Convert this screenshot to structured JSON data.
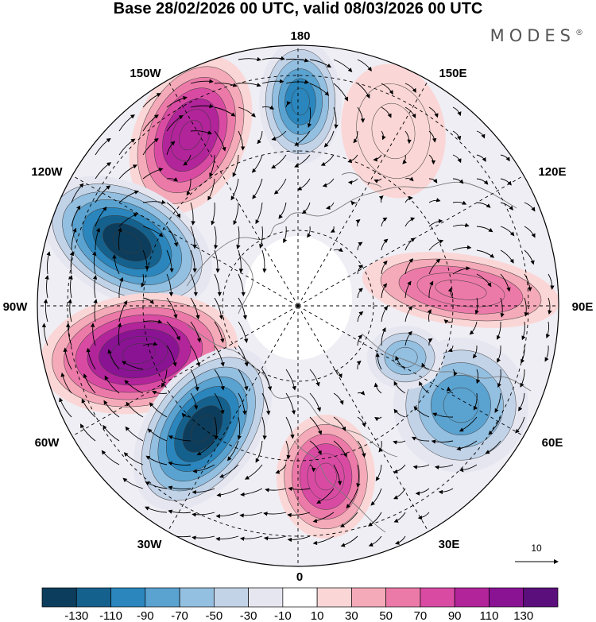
{
  "title": "Base 28/02/2026 00 UTC, valid 08/03/2026 00 UTC",
  "logo": "MODES",
  "logo_mark": "®",
  "longitude_labels": {
    "top": "180",
    "top_left": "150W",
    "top_right": "150E",
    "upper_left": "120W",
    "upper_right": "120E",
    "left": "90W",
    "right": "90E",
    "lower_left": "60W",
    "lower_right": "60E",
    "bottom_left": "30W",
    "bottom_right": "30E",
    "bottom": "0"
  },
  "reference_vector_label": "10",
  "colorbar": {
    "colors": [
      "#0d3d5c",
      "#15618e",
      "#2a86bd",
      "#5aa2d0",
      "#93bfe0",
      "#c2d3e8",
      "#e6e6f1",
      "#ffffff",
      "#fbd6d6",
      "#f4aab8",
      "#ec7aa8",
      "#d94ba3",
      "#b2249a",
      "#8a1393",
      "#5b0f7c"
    ],
    "labels": [
      "-130",
      "-110",
      "-90",
      "-70",
      "-50",
      "-30",
      "-10",
      "10",
      "30",
      "50",
      "70",
      "90",
      "110",
      "130"
    ]
  },
  "field_anomalies": [
    {
      "name": "blue-180",
      "value": -90
    },
    {
      "name": "magenta-150w",
      "value": 110
    },
    {
      "name": "blue-120w",
      "value": -130
    },
    {
      "name": "purple-90w",
      "value": 130
    },
    {
      "name": "blue-50w",
      "value": -130
    },
    {
      "name": "magenta-10e",
      "value": 90
    },
    {
      "name": "pink-150e",
      "value": 30
    },
    {
      "name": "pink-100e",
      "value": 70
    },
    {
      "name": "blue-55e",
      "value": -70
    },
    {
      "name": "blue-80e",
      "value": -50
    }
  ]
}
